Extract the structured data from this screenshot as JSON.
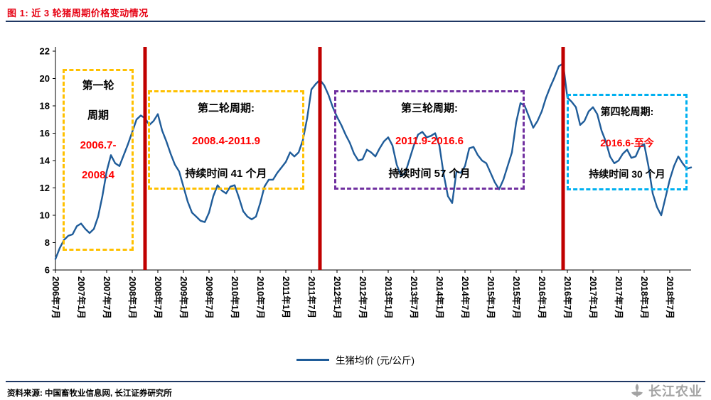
{
  "header": {
    "title": "图 1: 近 3 轮猪周期价格变动情况"
  },
  "legend": {
    "label": "生猪均价 (元/公斤)"
  },
  "footer": {
    "source": "资料来源: 中国畜牧业信息网, 长江证券研究所",
    "logo_text": "长江农业"
  },
  "annotations": {
    "cycle1": {
      "line1": "第一轮",
      "line2": "周期",
      "range1": "2006.7-",
      "range2": "2008.4"
    },
    "cycle2": {
      "title": "第二轮周期:",
      "range": "2008.4-2011.9",
      "duration": "持续时间 41 个月"
    },
    "cycle3": {
      "title": "第三轮周期:",
      "range": "2011.9-2016.6",
      "duration": "持续时间 57 个月"
    },
    "cycle4": {
      "title": "第四轮周期:",
      "range": "2016.6-至今",
      "duration": "持续时间 30 个月"
    }
  },
  "colors": {
    "title_red": "#E60012",
    "rule_navy": "#1F3864",
    "price_line": "#1F5C99",
    "cycle_divider_red": "#C00000",
    "highlight_red": "#FF0000",
    "cycle1_box": "#FFC000",
    "cycle2_box": "#FFC000",
    "cycle3_box": "#7030A0",
    "cycle4_box": "#00B0F0",
    "brand_gray": "#A3A3A3"
  },
  "chart_data": {
    "type": "line",
    "title": "近3轮猪周期价格变动情况",
    "series_name": "生猪均价",
    "unit": "元/公斤",
    "xlabel": "",
    "ylabel": "",
    "ylim": [
      6,
      22
    ],
    "y_ticks": [
      6,
      8,
      10,
      12,
      14,
      16,
      18,
      20,
      22
    ],
    "grid": false,
    "legend_position": "bottom",
    "x_start_month": "2006-07",
    "x_frequency": "monthly",
    "x_tick_labels": [
      "2006年7月",
      "2007年1月",
      "2007年7月",
      "2008年1月",
      "2008年7月",
      "2009年1月",
      "2009年7月",
      "2010年1月",
      "2010年7月",
      "2011年1月",
      "2011年7月",
      "2012年1月",
      "2012年7月",
      "2013年1月",
      "2013年7月",
      "2014年1月",
      "2014年7月",
      "2015年1月",
      "2015年7月",
      "2016年1月",
      "2016年7月",
      "2017年1月",
      "2017年7月",
      "2018年1月",
      "2018年7月"
    ],
    "values": [
      6.8,
      7.6,
      8.2,
      8.5,
      8.6,
      9.2,
      9.4,
      9.0,
      8.7,
      9.0,
      9.9,
      11.4,
      13.2,
      14.4,
      13.8,
      13.6,
      14.4,
      15.2,
      16.1,
      17.0,
      17.3,
      17.1,
      16.6,
      16.9,
      17.4,
      16.2,
      15.4,
      14.5,
      13.7,
      13.2,
      12.1,
      11.0,
      10.2,
      9.9,
      9.6,
      9.5,
      10.2,
      11.4,
      12.2,
      11.8,
      11.6,
      12.1,
      12.2,
      11.3,
      10.3,
      9.9,
      9.7,
      9.9,
      10.9,
      12.1,
      12.6,
      12.6,
      13.1,
      13.5,
      13.9,
      14.6,
      14.3,
      14.6,
      15.5,
      17.1,
      19.2,
      19.6,
      19.9,
      19.5,
      18.8,
      17.9,
      17.2,
      16.6,
      15.9,
      15.3,
      14.5,
      14.0,
      14.1,
      14.8,
      14.6,
      14.3,
      14.9,
      15.4,
      15.7,
      15.1,
      13.7,
      12.9,
      13.1,
      14.1,
      15.1,
      15.9,
      16.1,
      15.7,
      15.8,
      16.0,
      15.1,
      13.0,
      11.4,
      10.9,
      13.2,
      13.1,
      13.6,
      14.9,
      15.0,
      14.4,
      14.0,
      13.8,
      13.1,
      12.4,
      11.9,
      12.6,
      13.6,
      14.6,
      16.8,
      18.2,
      18.0,
      17.2,
      16.4,
      16.9,
      17.6,
      18.6,
      19.4,
      20.1,
      20.9,
      21.1,
      18.6,
      18.3,
      17.9,
      16.6,
      16.9,
      17.6,
      17.9,
      17.4,
      16.2,
      15.4,
      14.3,
      13.8,
      14.0,
      14.5,
      14.8,
      14.2,
      14.3,
      15.0,
      15.2,
      13.6,
      11.6,
      10.6,
      10.0,
      11.3,
      12.6,
      13.6,
      14.3,
      13.8,
      13.4,
      13.5
    ],
    "cycle_dividers": [
      {
        "label": "2008.4",
        "month_index": 21
      },
      {
        "label": "2011.9",
        "month_index": 62
      },
      {
        "label": "2016.6",
        "month_index": 119
      }
    ]
  }
}
